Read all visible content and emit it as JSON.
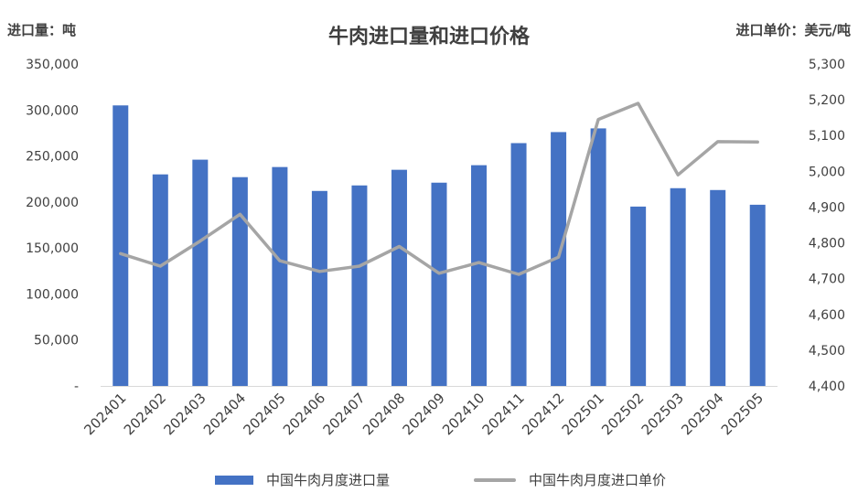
{
  "chart_data": {
    "type": "bar",
    "title": "牛肉进口量和进口价格",
    "y_left_label": "进口量：吨",
    "y_right_label": "进口单价：美元/吨",
    "categories": [
      "202401",
      "202402",
      "202403",
      "202404",
      "202405",
      "202406",
      "202407",
      "202408",
      "202409",
      "202410",
      "202411",
      "202412",
      "202501",
      "202502",
      "202503",
      "202504",
      "202505"
    ],
    "series": [
      {
        "name": "中国牛肉月度进口量",
        "type": "bar",
        "axis": "left",
        "values": [
          305000,
          230000,
          246000,
          227000,
          238000,
          212000,
          218000,
          235000,
          221000,
          240000,
          264000,
          276000,
          280000,
          195000,
          215000,
          213000,
          197000
        ]
      },
      {
        "name": "中国牛肉月度进口单价",
        "type": "line",
        "axis": "right",
        "values": [
          4770,
          4735,
          4805,
          4880,
          4750,
          4720,
          4735,
          4790,
          4715,
          4745,
          4712,
          4760,
          5145,
          5190,
          4990,
          5083,
          5082
        ]
      }
    ],
    "y_left": {
      "min": 0,
      "max": 350000,
      "ticks": [
        "-",
        "50,000",
        "100,000",
        "150,000",
        "200,000",
        "250,000",
        "300,000",
        "350,000"
      ]
    },
    "y_right": {
      "min": 4400,
      "max": 5300,
      "ticks": [
        "4,400",
        "4,500",
        "4,600",
        "4,700",
        "4,800",
        "4,900",
        "5,000",
        "5,100",
        "5,200",
        "5,300"
      ]
    },
    "grid": false,
    "legend_position": "bottom",
    "colors": {
      "bar": "#4472C4",
      "line": "#A5A5A5",
      "text": "#404040",
      "axis": "#D9D9D9"
    }
  }
}
